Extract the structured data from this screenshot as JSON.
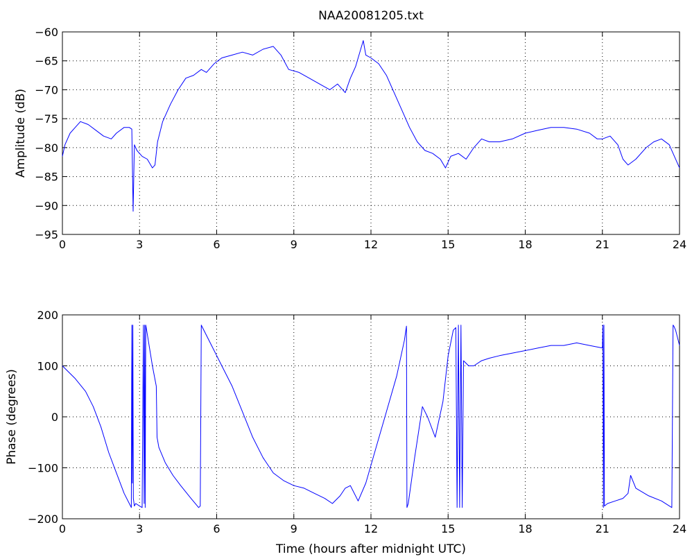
{
  "chart_data": [
    {
      "type": "line",
      "title": "NAA20081205.txt",
      "xlabel": "",
      "ylabel": "Amplitude (dB)",
      "xlim": [
        0,
        24
      ],
      "ylim": [
        -95,
        -60
      ],
      "xticks": [
        0,
        3,
        6,
        9,
        12,
        15,
        18,
        21,
        24
      ],
      "yticks": [
        -95,
        -90,
        -85,
        -80,
        -75,
        -70,
        -65,
        -60
      ],
      "grid": true,
      "legend": "none",
      "color": "#0000ff",
      "series": [
        {
          "x": [
            0,
            0.1,
            0.3,
            0.5,
            0.7,
            1.0,
            1.3,
            1.6,
            1.9,
            2.1,
            2.4,
            2.6,
            2.7,
            2.75,
            2.8,
            2.9,
            3.1,
            3.3,
            3.5,
            3.6,
            3.7,
            3.9,
            4.2,
            4.5,
            4.8,
            5.1,
            5.4,
            5.6,
            5.9,
            6.2,
            6.6,
            7.0,
            7.4,
            7.8,
            8.2,
            8.5,
            8.8,
            9.2,
            9.6,
            10.0,
            10.4,
            10.7,
            11.0,
            11.2,
            11.4,
            11.6,
            11.7,
            11.8,
            12.0,
            12.3,
            12.6,
            12.9,
            13.2,
            13.5,
            13.8,
            14.1,
            14.4,
            14.7,
            14.9,
            15.1,
            15.4,
            15.7,
            16.0,
            16.3,
            16.6,
            17.0,
            17.5,
            18.0,
            18.5,
            19.0,
            19.5,
            20.0,
            20.5,
            20.8,
            21.0,
            21.3,
            21.6,
            21.8,
            22.0,
            22.3,
            22.7,
            23.0,
            23.3,
            23.6,
            23.8,
            24.0
          ],
          "y": [
            -81.5,
            -79.5,
            -77.5,
            -76.5,
            -75.5,
            -76.0,
            -77.0,
            -78.0,
            -78.5,
            -77.5,
            -76.5,
            -76.5,
            -76.8,
            -91.0,
            -79.5,
            -80.5,
            -81.5,
            -82.0,
            -83.5,
            -83.0,
            -79.0,
            -75.5,
            -72.5,
            -70.0,
            -68.0,
            -67.5,
            -66.5,
            -67.0,
            -65.5,
            -64.5,
            -64.0,
            -63.5,
            -64.0,
            -63.0,
            -62.5,
            -64.0,
            -66.5,
            -67.0,
            -68.0,
            -69.0,
            -70.0,
            -69.0,
            -70.5,
            -68.0,
            -66.0,
            -63.0,
            -61.5,
            -64.0,
            -64.5,
            -65.5,
            -67.5,
            -70.5,
            -73.5,
            -76.5,
            -79.0,
            -80.5,
            -81.0,
            -82.0,
            -83.5,
            -81.5,
            -81.0,
            -82.0,
            -80.0,
            -78.5,
            -79.0,
            -79.0,
            -78.5,
            -77.5,
            -77.0,
            -76.5,
            -76.5,
            -76.8,
            -77.5,
            -78.5,
            -78.5,
            -78.0,
            -79.5,
            -82.0,
            -83.0,
            -82.0,
            -80.0,
            -79.0,
            -78.5,
            -79.5,
            -81.5,
            -83.5
          ]
        }
      ]
    },
    {
      "type": "line",
      "title": "",
      "xlabel": "Time (hours after midnight UTC)",
      "ylabel": "Phase (degrees)",
      "xlim": [
        0,
        24
      ],
      "ylim": [
        -200,
        200
      ],
      "xticks": [
        0,
        3,
        6,
        9,
        12,
        15,
        18,
        21,
        24
      ],
      "yticks": [
        -200,
        -100,
        0,
        100,
        200
      ],
      "grid": true,
      "legend": "none",
      "color": "#0000ff",
      "series": [
        {
          "x": [
            0,
            0.2,
            0.5,
            0.9,
            1.2,
            1.5,
            1.8,
            2.1,
            2.4,
            2.65,
            2.68,
            2.7,
            2.72,
            2.74,
            2.76,
            2.8,
            2.85,
            3.0,
            3.1,
            3.15,
            3.18,
            3.2,
            3.22,
            3.24,
            3.26,
            3.5,
            3.65,
            3.68,
            3.75,
            4.0,
            4.3,
            4.6,
            5.0,
            5.3,
            5.36,
            5.4,
            5.45,
            5.8,
            6.2,
            6.6,
            7.0,
            7.4,
            7.8,
            8.2,
            8.6,
            9.0,
            9.4,
            9.8,
            10.2,
            10.5,
            10.8,
            11.0,
            11.2,
            11.5,
            11.8,
            12.2,
            12.6,
            13.0,
            13.3,
            13.38,
            13.4,
            13.45,
            13.7,
            14.0,
            14.2,
            14.5,
            14.8,
            15.0,
            15.2,
            15.3,
            15.35,
            15.4,
            15.45,
            15.5,
            15.55,
            15.6,
            15.8,
            16.0,
            16.3,
            16.6,
            17.0,
            17.5,
            18.0,
            18.5,
            19.0,
            19.5,
            20.0,
            20.5,
            21.0,
            21.02,
            21.04,
            21.06,
            21.08,
            21.2,
            21.5,
            21.8,
            22.0,
            22.1,
            22.3,
            22.8,
            23.3,
            23.7,
            23.75,
            23.78,
            23.85,
            24.0
          ],
          "y": [
            100,
            90,
            75,
            50,
            20,
            -20,
            -70,
            -110,
            -150,
            -175,
            -178,
            180,
            -130,
            180,
            -160,
            -175,
            -170,
            -175,
            -178,
            180,
            -170,
            180,
            -178,
            180,
            175,
            100,
            60,
            -40,
            -60,
            -90,
            -115,
            -135,
            -160,
            -178,
            -175,
            180,
            175,
            140,
            100,
            60,
            10,
            -40,
            -80,
            -110,
            -125,
            -135,
            -140,
            -150,
            -160,
            -170,
            -155,
            -140,
            -135,
            -165,
            -130,
            -60,
            10,
            80,
            150,
            178,
            -178,
            -170,
            -80,
            20,
            0,
            -40,
            30,
            120,
            170,
            175,
            -178,
            180,
            -178,
            180,
            -178,
            110,
            100,
            100,
            110,
            115,
            120,
            125,
            130,
            135,
            140,
            140,
            145,
            140,
            135,
            180,
            -178,
            180,
            -175,
            -170,
            -165,
            -160,
            -150,
            -115,
            -140,
            -155,
            -165,
            -178,
            180,
            178,
            170,
            140
          ]
        }
      ]
    }
  ]
}
